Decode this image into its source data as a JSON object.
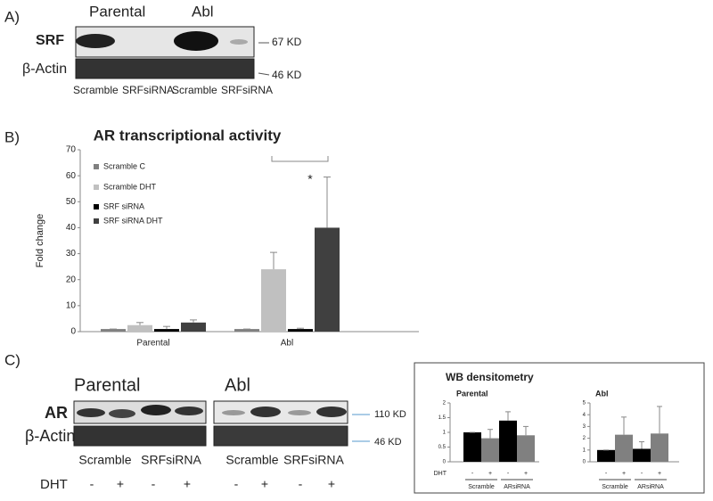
{
  "panel_labels": [
    "A)",
    "B)",
    "C)"
  ],
  "panel_a": {
    "columns": [
      "Parental",
      "Abl"
    ],
    "rows": [
      "SRF",
      "β-Actin"
    ],
    "sizes": [
      "67 KD",
      "46 KD"
    ],
    "lanes": [
      "Scramble",
      "SRFsiRNA",
      "Scramble",
      "SRFsiRNA"
    ]
  },
  "panel_c": {
    "columns": [
      "Parental",
      "Abl"
    ],
    "rows": [
      "AR",
      "β-Actin"
    ],
    "sizes": [
      "110 KD",
      "46 KD"
    ],
    "lanes": [
      "Scramble",
      "SRFsiRNA",
      "Scramble",
      "SRFsiRNA"
    ],
    "treatment": "DHT",
    "signs": [
      "-",
      "+",
      "-",
      "+",
      "-",
      "+",
      "-",
      "+"
    ],
    "inset_title": "WB densitometry"
  },
  "chart_data": [
    {
      "type": "bar",
      "title": "AR transcriptional activity",
      "ylabel": "Fold change",
      "categories": [
        "Parental",
        "Abl"
      ],
      "series": [
        {
          "name": "Scramble C",
          "color": "#808080",
          "values": [
            1,
            1
          ],
          "errors": [
            0,
            0
          ]
        },
        {
          "name": "Scramble DHT",
          "color": "#c0c0c0",
          "values": [
            2.5,
            24
          ],
          "errors": [
            1,
            6.5
          ]
        },
        {
          "name": "SRF siRNA",
          "color": "#000000",
          "values": [
            1,
            1
          ],
          "errors": [
            1,
            0.3
          ]
        },
        {
          "name": "SRF siRNA DHT",
          "color": "#404040",
          "values": [
            3.5,
            40
          ],
          "errors": [
            1,
            19.5
          ]
        }
      ],
      "ylim": [
        0,
        70
      ],
      "yticks": [
        0,
        10,
        20,
        30,
        40,
        50,
        60,
        70
      ],
      "annotations": [
        "*"
      ],
      "legend": "upper-left"
    },
    {
      "type": "bar",
      "title": "Parental",
      "values": [
        1,
        0.8,
        1.4,
        0.9
      ],
      "errors": [
        0,
        0.3,
        0.3,
        0.3
      ],
      "colors": [
        "#000000",
        "#808080",
        "#000000",
        "#808080"
      ],
      "ylim": [
        0,
        2
      ],
      "yticks": [
        0,
        0.5,
        1,
        1.5,
        2
      ],
      "xlabel": "DHT",
      "treatment_signs": [
        "-",
        "+",
        "-",
        "+"
      ],
      "groups": [
        "Scramble",
        "ARsiRNA"
      ]
    },
    {
      "type": "bar",
      "title": "Abl",
      "values": [
        1,
        2.3,
        1.1,
        2.4
      ],
      "errors": [
        0,
        1.5,
        0.6,
        2.3
      ],
      "colors": [
        "#000000",
        "#808080",
        "#000000",
        "#808080"
      ],
      "ylim": [
        0,
        5
      ],
      "yticks": [
        0,
        1,
        2,
        3,
        4,
        5
      ],
      "treatment_signs": [
        "-",
        "+",
        "-",
        "+"
      ],
      "groups": [
        "Scramble",
        "ARsiRNA"
      ]
    }
  ]
}
